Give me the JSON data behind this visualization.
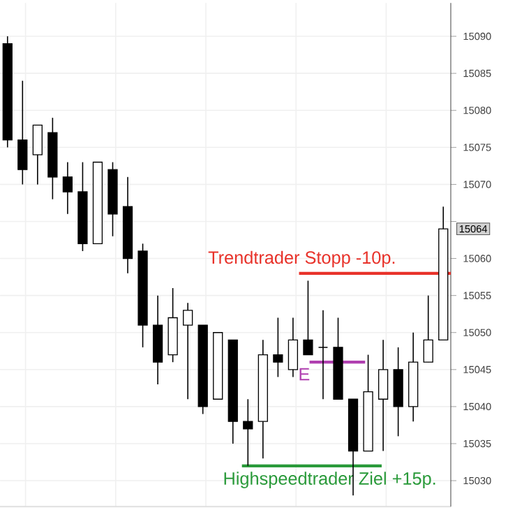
{
  "chart_data": {
    "type": "candlestick",
    "categories": [
      null,
      null,
      null,
      null,
      null,
      null,
      null,
      null,
      null,
      null,
      null,
      null,
      null,
      null,
      null,
      null,
      null,
      null,
      null,
      null,
      null,
      null,
      null,
      null,
      null,
      null,
      null,
      null,
      null,
      null
    ],
    "ohlc": [
      [
        15089,
        15090,
        15075,
        15076
      ],
      [
        15076,
        15084,
        15070,
        15072
      ],
      [
        15074,
        15078,
        15070,
        15078
      ],
      [
        15077,
        15079,
        15068,
        15071
      ],
      [
        15071,
        15073,
        15066,
        15069
      ],
      [
        15069,
        15073,
        15061,
        15062
      ],
      [
        15062,
        15073,
        15062,
        15073
      ],
      [
        15072,
        15073,
        15063,
        15066
      ],
      [
        15067,
        15071,
        15058,
        15060
      ],
      [
        15061,
        15062,
        15048,
        15051
      ],
      [
        15051,
        15055,
        15043,
        15046
      ],
      [
        15047,
        15056,
        15046,
        15052
      ],
      [
        15051,
        15054,
        15041,
        15053
      ],
      [
        15051,
        15051,
        15039,
        15040
      ],
      [
        15041,
        15050,
        15041,
        15050
      ],
      [
        15049,
        15049,
        15035,
        15038
      ],
      [
        15038,
        15041,
        15032,
        15037
      ],
      [
        15038,
        15049,
        15033,
        15047
      ],
      [
        15047,
        15052,
        15044,
        15046
      ],
      [
        15045,
        15052,
        15044,
        15049
      ],
      [
        15049,
        15057,
        15047,
        15047
      ],
      [
        15048,
        15053,
        15041,
        15048
      ],
      [
        15048,
        15052,
        15041,
        15041
      ],
      [
        15041,
        15041,
        15028,
        15034
      ],
      [
        15034,
        15047,
        15034,
        15042
      ],
      [
        15041,
        15049,
        15034,
        15045
      ],
      [
        15045,
        15048,
        15036,
        15040
      ],
      [
        15040,
        15050,
        15038,
        15046
      ],
      [
        15046,
        15055,
        15046,
        15049
      ],
      [
        15049,
        15067,
        15049,
        15064
      ]
    ],
    "ylim": [
      15026.5,
      15094.5
    ],
    "yticks": [
      15030,
      15035,
      15040,
      15045,
      15050,
      15055,
      15060,
      {
        "value": 15065,
        "label": null
      },
      15070,
      15075,
      15080,
      15085,
      15090
    ],
    "grid": true,
    "tick_labels": "y",
    "ref_lines": [
      {
        "axis": "y",
        "value": 15058,
        "label": "Trendtrader Stopp -10p.",
        "color": "#e8322a"
      },
      {
        "axis": "y",
        "value": 15046,
        "label": "E",
        "color": "#b040b0"
      },
      {
        "axis": "y",
        "value": 15032,
        "label": "Highspeedtrader Ziel +15p.",
        "color": "#2a9a3a"
      }
    ],
    "annotations": [
      "15064"
    ]
  }
}
